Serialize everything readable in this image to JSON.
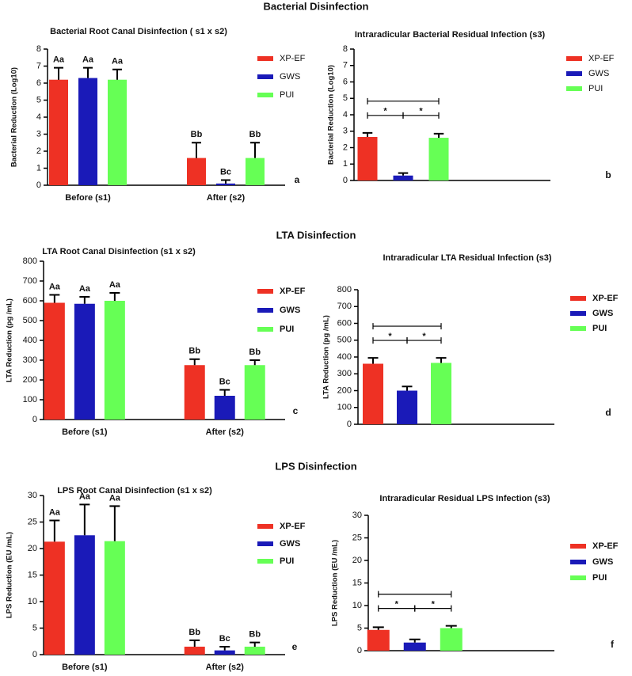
{
  "sections": [
    "Bacterial Disinfection",
    "LTA Disinfection",
    "LPS Disinfection"
  ],
  "chart_data": [
    {
      "type": "bar",
      "title": "Bacterial Root  Canal Disinfection ( s1 x s2)",
      "y_label": "Bacterial Reduction (Log10)",
      "panel": "a",
      "categories": [
        "Before (s1)",
        "After (s2)"
      ],
      "ylim": [
        0,
        8
      ],
      "yticks": [
        0,
        1,
        2,
        3,
        4,
        5,
        6,
        7,
        8
      ],
      "series": [
        {
          "name": "XP-EF",
          "color": "#ee3124",
          "values": [
            6.2,
            1.6
          ],
          "errors": [
            0.7,
            0.9
          ],
          "letters": [
            "Aa",
            "Bb"
          ]
        },
        {
          "name": "GWS",
          "color": "#1a1ab8",
          "values": [
            6.3,
            0.1
          ],
          "errors": [
            0.6,
            0.2
          ],
          "letters": [
            "Aa",
            "Bc"
          ]
        },
        {
          "name": "PUI",
          "color": "#66ff55",
          "values": [
            6.2,
            1.6
          ],
          "errors": [
            0.6,
            0.9
          ],
          "letters": [
            "Aa",
            "Bb"
          ]
        }
      ]
    },
    {
      "type": "bar",
      "title": "Intraradicular Bacterial Residual Infection (s3)",
      "y_label": "Bacterial Reduction (Log10)",
      "panel": "b",
      "categories": [
        null
      ],
      "ylim": [
        0,
        8
      ],
      "yticks": [
        0,
        1,
        2,
        3,
        4,
        5,
        6,
        7,
        8
      ],
      "series": [
        {
          "name": "XP-EF",
          "color": "#ee3124",
          "values": [
            2.65
          ],
          "errors": [
            0.25
          ]
        },
        {
          "name": "GWS",
          "color": "#1a1ab8",
          "values": [
            0.3
          ],
          "errors": [
            0.15
          ]
        },
        {
          "name": "PUI",
          "color": "#66ff55",
          "values": [
            2.6
          ],
          "errors": [
            0.25
          ]
        }
      ],
      "brackets": [
        {
          "from": 0,
          "to": 1,
          "label": "*"
        },
        {
          "from": 1,
          "to": 2,
          "label": "*"
        },
        {
          "from": 0,
          "to": 2
        }
      ]
    },
    {
      "type": "bar",
      "title": "LTA  Root  Canal Disinfection (s1 x s2)",
      "y_label": "LTA Reduction (pg /mL)",
      "panel": "c",
      "categories": [
        "Before (s1)",
        "After (s2)"
      ],
      "ylim": [
        0,
        800
      ],
      "yticks": [
        0,
        100,
        200,
        300,
        400,
        500,
        600,
        700,
        800
      ],
      "series": [
        {
          "name": "XP-EF",
          "color": "#ee3124",
          "values": [
            590,
            275
          ],
          "errors": [
            40,
            30
          ],
          "letters": [
            "Aa",
            "Bb"
          ]
        },
        {
          "name": "GWS",
          "color": "#1a1ab8",
          "values": [
            585,
            120
          ],
          "errors": [
            35,
            30
          ],
          "letters": [
            "Aa",
            "Bc"
          ]
        },
        {
          "name": "PUI",
          "color": "#66ff55",
          "values": [
            600,
            275
          ],
          "errors": [
            40,
            25
          ],
          "letters": [
            "Aa",
            "Bb"
          ]
        }
      ]
    },
    {
      "type": "bar",
      "title": "Intraradicular  LTA Residual Infection (s3)",
      "y_label": "LTA Reduction (pg /mL)",
      "panel": "d",
      "categories": [
        null
      ],
      "ylim": [
        0,
        800
      ],
      "yticks": [
        0,
        100,
        200,
        300,
        400,
        500,
        600,
        700,
        800
      ],
      "series": [
        {
          "name": "XP-EF",
          "color": "#ee3124",
          "values": [
            360
          ],
          "errors": [
            35
          ]
        },
        {
          "name": "GWS",
          "color": "#1a1ab8",
          "values": [
            200
          ],
          "errors": [
            25
          ]
        },
        {
          "name": "PUI",
          "color": "#66ff55",
          "values": [
            365
          ],
          "errors": [
            30
          ]
        }
      ],
      "brackets": [
        {
          "from": 0,
          "to": 1,
          "label": "*"
        },
        {
          "from": 1,
          "to": 2,
          "label": "*"
        },
        {
          "from": 0,
          "to": 2
        }
      ]
    },
    {
      "type": "bar",
      "title": "LPS Root Canal Disinfection (s1 x s2)",
      "y_label": "LPS  Reduction (EU /mL)",
      "panel": "e",
      "categories": [
        "Before (s1)",
        "After (s2)"
      ],
      "ylim": [
        0,
        30
      ],
      "yticks": [
        0,
        5,
        10,
        15,
        20,
        25,
        30
      ],
      "series": [
        {
          "name": "XP-EF",
          "color": "#ee3124",
          "values": [
            21.3,
            1.5
          ],
          "errors": [
            4,
            1.2
          ],
          "letters": [
            "Aa",
            "Bb"
          ]
        },
        {
          "name": "GWS",
          "color": "#1a1ab8",
          "values": [
            22.5,
            0.8
          ],
          "errors": [
            5.8,
            0.7
          ],
          "letters": [
            "Aa",
            "Bc"
          ]
        },
        {
          "name": "PUI",
          "color": "#66ff55",
          "values": [
            21.4,
            1.5
          ],
          "errors": [
            6.6,
            0.8
          ],
          "letters": [
            "Aa",
            "Bb"
          ]
        }
      ]
    },
    {
      "type": "bar",
      "title": "Intraradicular Residual LPS Infection (s3)",
      "y_label": "LPS  Reduction (EU /mL)",
      "panel": "f",
      "categories": [
        null
      ],
      "ylim": [
        0,
        30
      ],
      "yticks": [
        0,
        5,
        10,
        15,
        20,
        25,
        30
      ],
      "series": [
        {
          "name": "XP-EF",
          "color": "#ee3124",
          "values": [
            4.6
          ],
          "errors": [
            0.6
          ]
        },
        {
          "name": "GWS",
          "color": "#1a1ab8",
          "values": [
            1.8
          ],
          "errors": [
            0.7
          ]
        },
        {
          "name": "PUI",
          "color": "#66ff55",
          "values": [
            5
          ],
          "errors": [
            0.5
          ]
        }
      ],
      "brackets": [
        {
          "from": 0,
          "to": 1,
          "label": "*"
        },
        {
          "from": 1,
          "to": 2,
          "label": "*"
        },
        {
          "from": 0,
          "to": 2
        }
      ]
    }
  ]
}
